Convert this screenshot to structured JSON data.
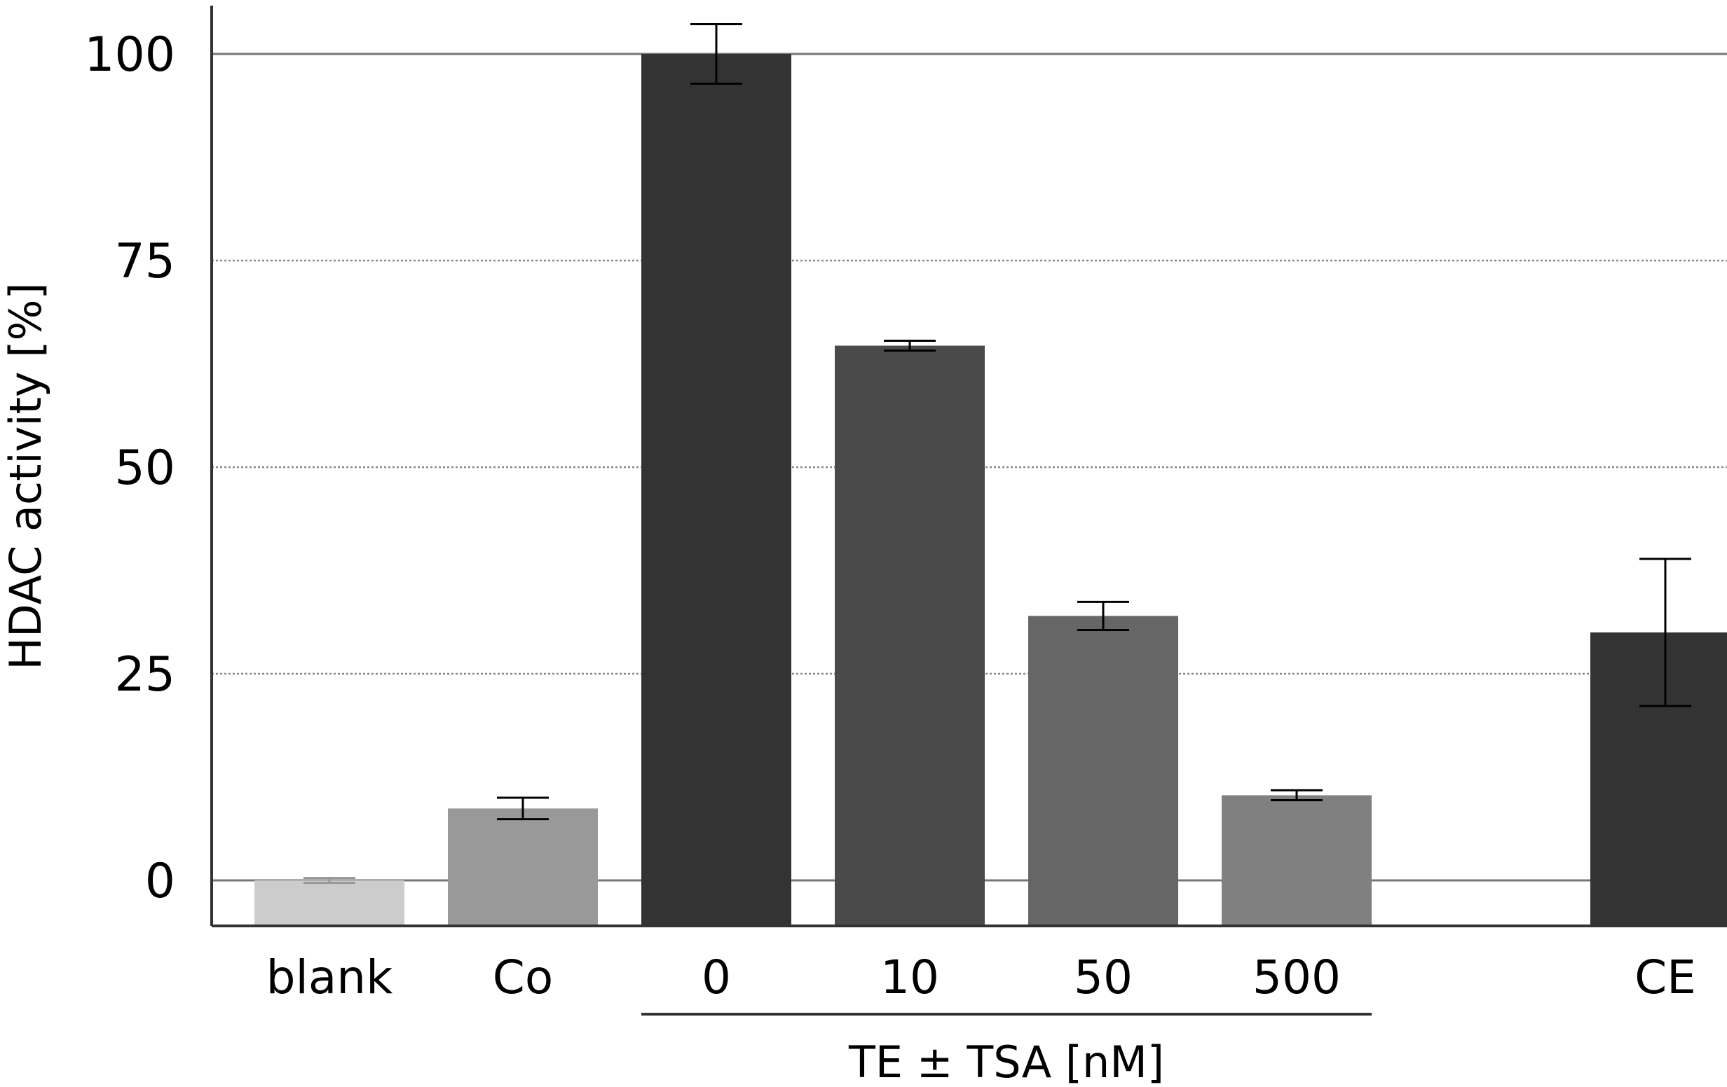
{
  "chart_data": {
    "type": "bar",
    "title": "",
    "ylabel": "HDAC activity [%]",
    "xlabel": "",
    "ylim": [
      -5.5,
      106
    ],
    "yticks": [
      0,
      25,
      50,
      75,
      100
    ],
    "tick_labels": [
      "0",
      "25",
      "50",
      "75",
      "100"
    ],
    "grid": "horizontal dotted at 25, 50, 75; solid at 0 and 100",
    "categories": [
      "blank",
      "Co",
      "0",
      "10",
      "50",
      "500",
      "CE"
    ],
    "values": [
      0,
      8.7,
      100,
      64.7,
      32.0,
      10.3,
      30.0
    ],
    "errors": [
      0.3,
      1.3,
      3.6,
      0.6,
      1.7,
      0.6,
      8.9
    ],
    "colors": [
      "#cccccc",
      "#999999",
      "#333333",
      "#4a4a4a",
      "#666666",
      "#808080",
      "#333333"
    ],
    "group_label": "TE ± TSA [nM]",
    "group_span": [
      "0",
      "500"
    ]
  }
}
